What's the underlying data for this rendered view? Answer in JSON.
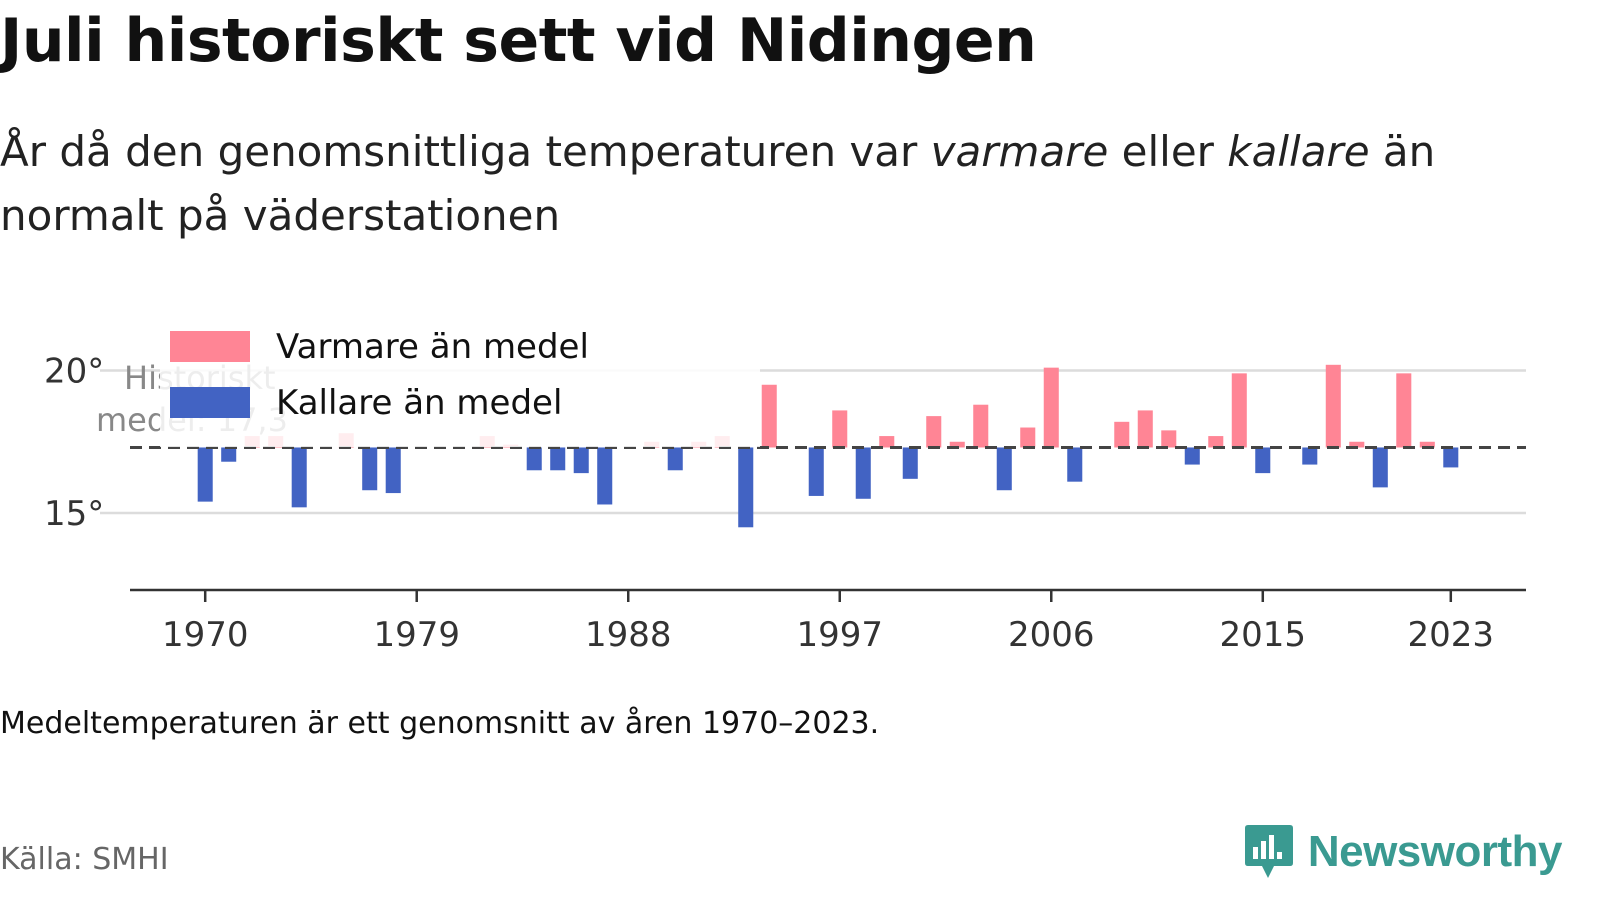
{
  "header": {
    "title": "Juli historiskt sett vid Nidingen",
    "subtitle_part1": "År då den genomsnittliga temperaturen var ",
    "subtitle_warm": "varmare",
    "subtitle_part2": " eller ",
    "subtitle_cold": "kallare",
    "subtitle_part3": " än normalt på väderstationen"
  },
  "footer": {
    "note": "Medeltemperaturen är ett genomsnitt av åren 1970–2023.",
    "source": "Källa: SMHI",
    "brand": "Newsworthy",
    "brand_icon": "bar-chart-bubble-icon"
  },
  "colors": {
    "warm": "#ff8595",
    "cold": "#4263c3",
    "brand": "#3a9a91"
  },
  "chart_data": {
    "type": "bar",
    "baseline_label_line1": "Historiskt",
    "baseline_label_line2": "medel: 17,3",
    "baseline": 17.3,
    "ylim": [
      12.3,
      21
    ],
    "yticks": [
      15,
      20
    ],
    "ytick_labels": [
      "15°",
      "20°"
    ],
    "xticks": [
      1970,
      1979,
      1988,
      1997,
      2006,
      2015,
      2023
    ],
    "xlim": [
      1966.8,
      2026.2
    ],
    "grid": true,
    "legend": {
      "position": "top-left",
      "entries": [
        "Varmare än medel",
        "Kallare än medel"
      ]
    },
    "x": [
      1970,
      1971,
      1972,
      1973,
      1974,
      1975,
      1976,
      1977,
      1978,
      1979,
      1980,
      1981,
      1982,
      1983,
      1984,
      1985,
      1986,
      1987,
      1988,
      1989,
      1990,
      1991,
      1992,
      1993,
      1994,
      1995,
      1996,
      1997,
      1998,
      1999,
      2000,
      2001,
      2002,
      2003,
      2004,
      2005,
      2006,
      2007,
      2008,
      2009,
      2010,
      2011,
      2012,
      2013,
      2014,
      2015,
      2016,
      2017,
      2018,
      2019,
      2020,
      2021,
      2022,
      2023
    ],
    "values": [
      15.4,
      16.8,
      17.7,
      17.7,
      15.2,
      17.3,
      17.8,
      15.8,
      15.7,
      17.3,
      17.3,
      17.3,
      17.7,
      17.4,
      16.5,
      16.5,
      16.4,
      15.3,
      17.3,
      17.5,
      16.5,
      17.5,
      17.7,
      14.5,
      19.5,
      17.3,
      15.6,
      18.6,
      15.5,
      17.7,
      16.2,
      18.4,
      17.5,
      18.8,
      15.8,
      18.0,
      20.1,
      16.1,
      17.3,
      18.2,
      18.6,
      17.9,
      16.7,
      17.7,
      19.9,
      16.4,
      17.3,
      16.7,
      20.2,
      17.5,
      15.9,
      19.9,
      17.5,
      16.6
    ]
  }
}
